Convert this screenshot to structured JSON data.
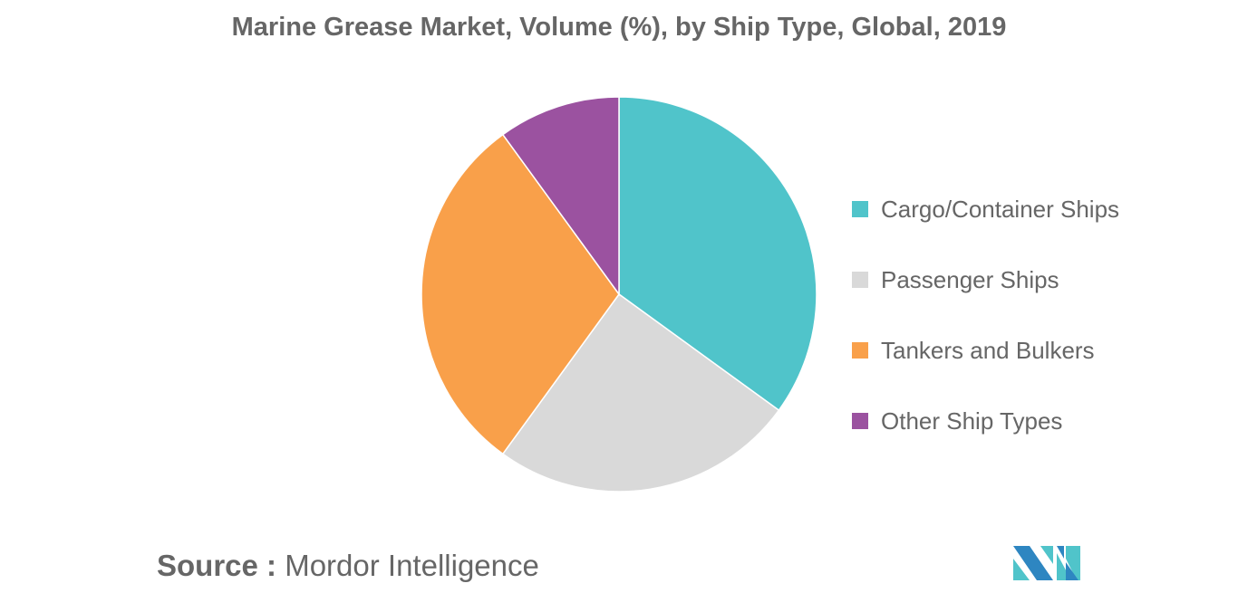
{
  "chart_data": {
    "type": "pie",
    "title": "Marine Grease Market, Volume (%), by Ship Type, Global, 2019",
    "categories": [
      "Cargo/Container Ships",
      "Passenger Ships",
      "Tankers and Bulkers",
      "Other Ship Types"
    ],
    "values": [
      35,
      25,
      30,
      10
    ],
    "colors": [
      "#50C4CA",
      "#D9D9D9",
      "#F9A04A",
      "#9B52A0"
    ],
    "legend_position": "right"
  },
  "source": {
    "label": "Source :",
    "value": "Mordor Intelligence"
  },
  "logo_text": "MI"
}
